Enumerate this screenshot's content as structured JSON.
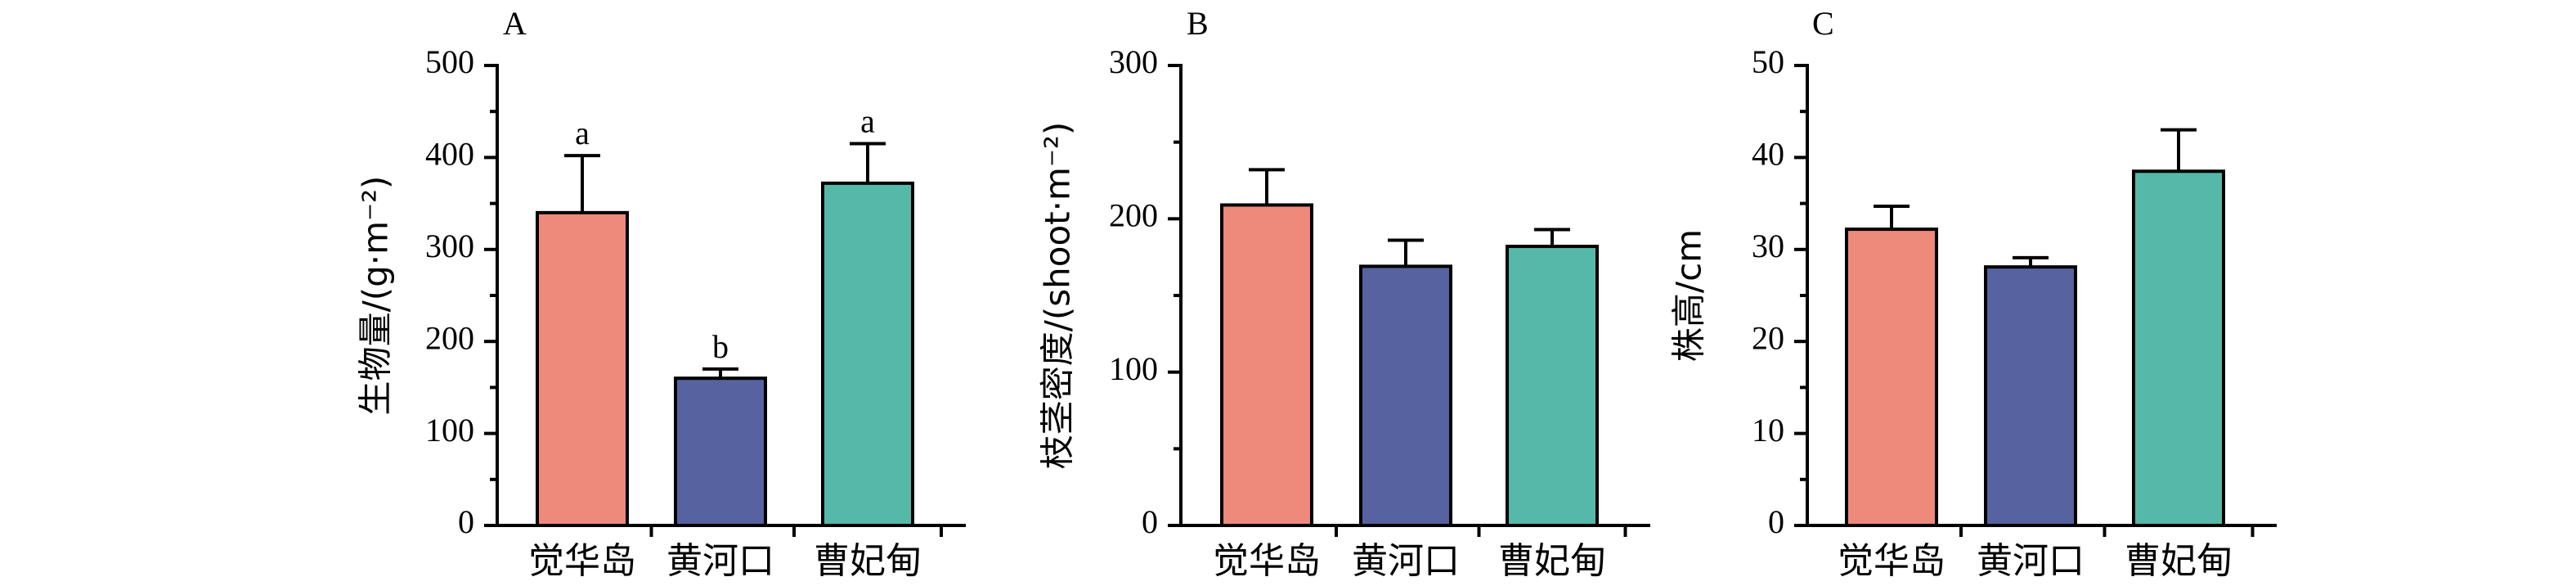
{
  "chart_data": [
    {
      "type": "bar",
      "panel": "A",
      "categories": [
        "觉华岛",
        "黄河口",
        "曹妃甸"
      ],
      "values": [
        340,
        160,
        372
      ],
      "errors": [
        62,
        10,
        43
      ],
      "significance": [
        "a",
        "b",
        "a"
      ],
      "ylabel": "生物量/(g·m⁻²)",
      "ylim": [
        0,
        500
      ],
      "yticks": [
        "0",
        "100",
        "200",
        "300",
        "400",
        "500"
      ],
      "colors": [
        "#EE8A7C",
        "#5762A0",
        "#56B8A8"
      ]
    },
    {
      "type": "bar",
      "panel": "B",
      "categories": [
        "觉华岛",
        "黄河口",
        "曹妃甸"
      ],
      "values": [
        209,
        169,
        182
      ],
      "errors": [
        23,
        17,
        11
      ],
      "significance": [],
      "ylabel": "枝茎密度/(shoot·m⁻²)",
      "ylim": [
        0,
        300
      ],
      "yticks": [
        "0",
        "100",
        "200",
        "300"
      ],
      "colors": [
        "#EE8A7C",
        "#5762A0",
        "#56B8A8"
      ]
    },
    {
      "type": "bar",
      "panel": "C",
      "categories": [
        "觉华岛",
        "黄河口",
        "曹妃甸"
      ],
      "values": [
        32.2,
        28.1,
        38.5
      ],
      "errors": [
        2.5,
        1.0,
        4.5
      ],
      "significance": [],
      "ylabel": "株高/cm",
      "ylim": [
        0,
        50
      ],
      "yticks": [
        "0",
        "10",
        "20",
        "30",
        "40",
        "50"
      ],
      "colors": [
        "#EE8A7C",
        "#5762A0",
        "#56B8A8"
      ]
    }
  ]
}
